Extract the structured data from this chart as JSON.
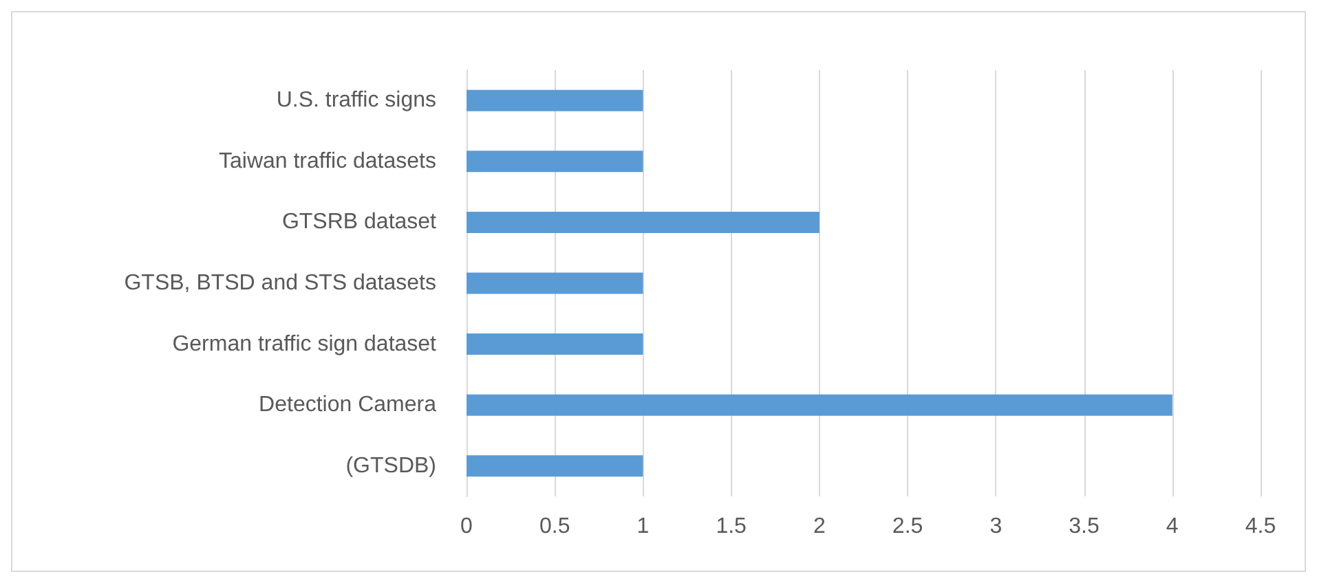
{
  "chart_data": {
    "type": "bar",
    "orientation": "horizontal",
    "categories": [
      "U.S. traffic signs",
      "Taiwan traffic datasets",
      "GTSRB dataset",
      "GTSB, BTSD and STS datasets",
      "German traffic sign dataset",
      "Detection Camera",
      "(GTSDB)"
    ],
    "values": [
      1,
      1,
      2,
      1,
      1,
      4,
      1
    ],
    "color": "#5b9bd5",
    "xlim": [
      0,
      4.5
    ],
    "xticks": [
      0,
      0.5,
      1,
      1.5,
      2,
      2.5,
      3,
      3.5,
      4,
      4.5
    ],
    "grid": "x"
  }
}
